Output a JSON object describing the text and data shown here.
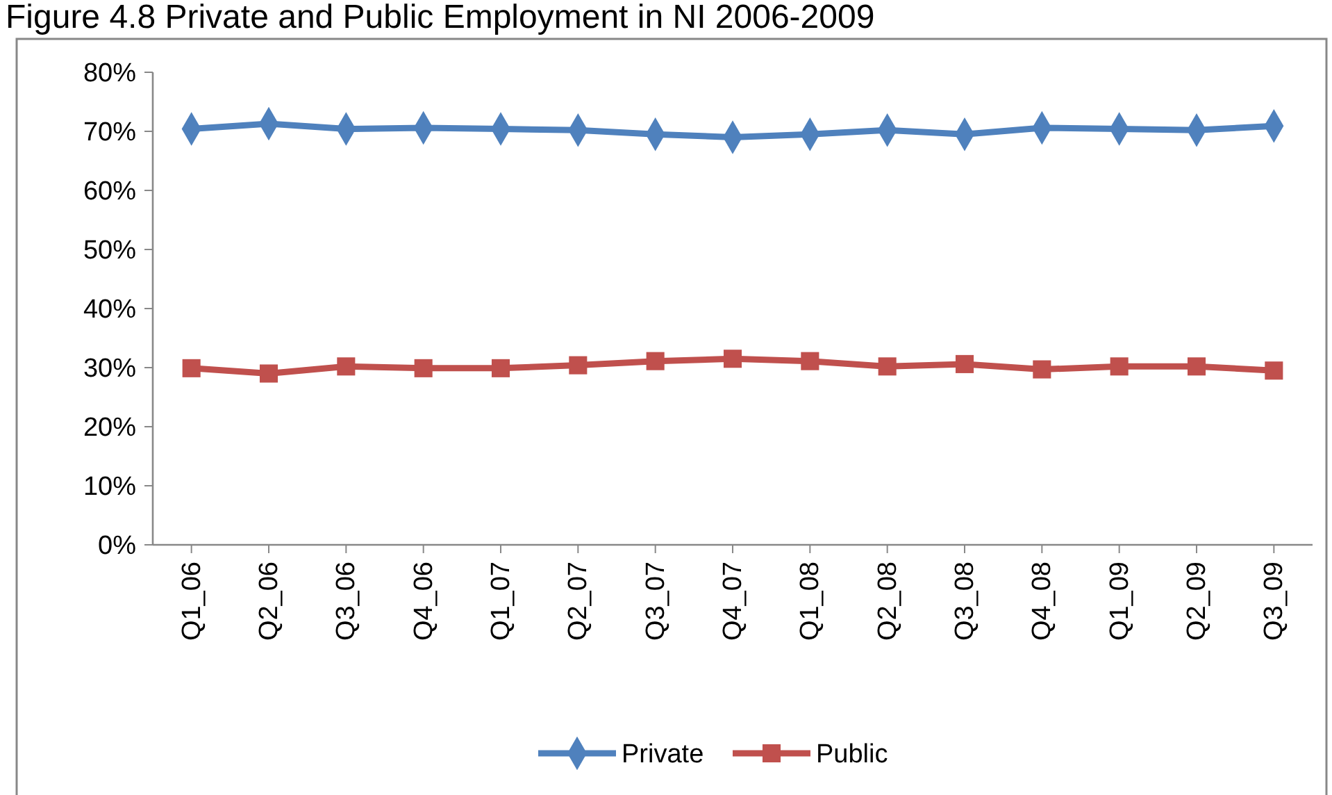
{
  "chart_data": {
    "type": "line",
    "title": "Figure 4.8 Private and Public Employment in NI 2006-2009",
    "categories": [
      "Q1_06",
      "Q2_06",
      "Q3_06",
      "Q4_06",
      "Q1_07",
      "Q2_07",
      "Q3_07",
      "Q4_07",
      "Q1_08",
      "Q2_08",
      "Q3_08",
      "Q4_08",
      "Q1_09",
      "Q2_09",
      "Q3_09"
    ],
    "series": [
      {
        "name": "Private",
        "color": "#4f81bd",
        "marker": "diamond",
        "values": [
          70.4,
          71.3,
          70.4,
          70.6,
          70.4,
          70.2,
          69.5,
          69.0,
          69.5,
          70.2,
          69.5,
          70.6,
          70.4,
          70.2,
          70.9
        ]
      },
      {
        "name": "Public",
        "color": "#c0504d",
        "marker": "square",
        "values": [
          29.9,
          29.0,
          30.2,
          29.9,
          29.9,
          30.4,
          31.1,
          31.5,
          31.1,
          30.2,
          30.6,
          29.7,
          30.2,
          30.2,
          29.5
        ]
      }
    ],
    "ylim": [
      0,
      80
    ],
    "yticks": [
      {
        "value": 0,
        "label": "0%"
      },
      {
        "value": 10,
        "label": "10%"
      },
      {
        "value": 20,
        "label": "20%"
      },
      {
        "value": 30,
        "label": "30%"
      },
      {
        "value": 40,
        "label": "40%"
      },
      {
        "value": 50,
        "label": "50%"
      },
      {
        "value": 60,
        "label": "60%"
      },
      {
        "value": 70,
        "label": "70%"
      },
      {
        "value": 80,
        "label": "80%"
      }
    ],
    "grid": false,
    "legend": "bottom"
  }
}
